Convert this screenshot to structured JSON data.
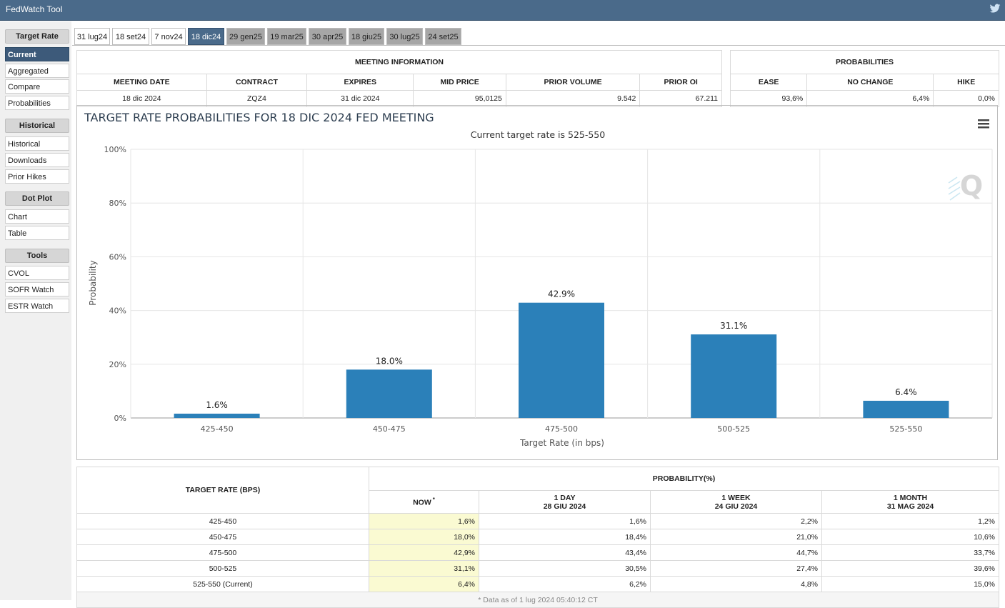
{
  "app": {
    "title": "FedWatch Tool"
  },
  "sidebar": {
    "target_rate": {
      "heading": "Target Rate",
      "items": [
        "Current",
        "Aggregated",
        "Compare",
        "Probabilities"
      ]
    },
    "historical": {
      "heading": "Historical",
      "items": [
        "Historical",
        "Downloads",
        "Prior Hikes"
      ]
    },
    "dot_plot": {
      "heading": "Dot Plot",
      "items": [
        "Chart",
        "Table"
      ]
    },
    "tools": {
      "heading": "Tools",
      "items": [
        "CVOL",
        "SOFR Watch",
        "ESTR Watch"
      ]
    }
  },
  "tabs": [
    "31 lug24",
    "18 set24",
    "7 nov24",
    "18 dic24",
    "29 gen25",
    "19 mar25",
    "30 apr25",
    "18 giu25",
    "30 lug25",
    "24 set25"
  ],
  "meeting_info": {
    "title": "MEETING INFORMATION",
    "headers": [
      "MEETING DATE",
      "CONTRACT",
      "EXPIRES",
      "MID PRICE",
      "PRIOR VOLUME",
      "PRIOR OI"
    ],
    "values": [
      "18 dic 2024",
      "ZQZ4",
      "31 dic 2024",
      "95,0125",
      "9.542",
      "67.211"
    ]
  },
  "probabilities": {
    "title": "PROBABILITIES",
    "headers": [
      "EASE",
      "NO CHANGE",
      "HIKE"
    ],
    "values": [
      "93,6%",
      "6,4%",
      "0,0%"
    ]
  },
  "chart_data": {
    "type": "bar",
    "title": "TARGET RATE PROBABILITIES FOR 18 DIC 2024 FED MEETING",
    "subtitle": "Current target rate is 525-550",
    "xlabel": "Target Rate (in bps)",
    "ylabel": "Probability",
    "categories": [
      "425-450",
      "450-475",
      "475-500",
      "500-525",
      "525-550"
    ],
    "values": [
      1.6,
      18.0,
      42.9,
      31.1,
      6.4
    ],
    "value_labels": [
      "1.6%",
      "18.0%",
      "42.9%",
      "31.1%",
      "6.4%"
    ],
    "ylim": [
      0,
      100
    ],
    "yticks": [
      0,
      20,
      40,
      60,
      80,
      100
    ],
    "ytick_labels": [
      "0%",
      "20%",
      "40%",
      "60%",
      "80%",
      "100%"
    ],
    "bar_color": "#2b80b9",
    "grid": true
  },
  "prob_table": {
    "col_target": "TARGET RATE (BPS)",
    "col_group": "PROBABILITY(%)",
    "now": "NOW",
    "now_mark": "*",
    "day": {
      "label": "1 DAY",
      "date": "28 GIU 2024"
    },
    "week": {
      "label": "1 WEEK",
      "date": "24 GIU 2024"
    },
    "month": {
      "label": "1 MONTH",
      "date": "31 MAG 2024"
    },
    "rows": [
      [
        "425-450",
        "1,6%",
        "1,6%",
        "2,2%",
        "1,2%"
      ],
      [
        "450-475",
        "18,0%",
        "18,4%",
        "21,0%",
        "10,6%"
      ],
      [
        "475-500",
        "42,9%",
        "43,4%",
        "44,7%",
        "33,7%"
      ],
      [
        "500-525",
        "31,1%",
        "30,5%",
        "27,4%",
        "39,6%"
      ],
      [
        "525-550 (Current)",
        "6,4%",
        "6,2%",
        "4,8%",
        "15,0%"
      ]
    ],
    "footer": "* Data as of 1 lug 2024 05:40:12 CT"
  },
  "colors": {
    "header": "#4a6a8a",
    "active": "#3d5a7a",
    "bar": "#2b80b9",
    "now_bg": "#fafad2"
  }
}
